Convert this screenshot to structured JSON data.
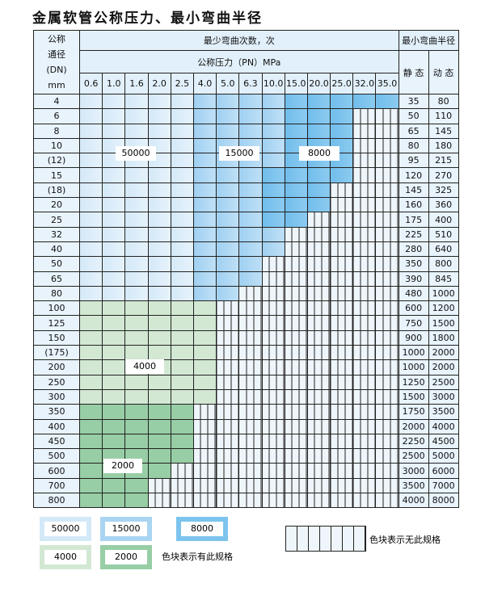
{
  "title": "金属软管公称压力、最小弯曲半径",
  "header": {
    "dn_label": [
      "公称",
      "通径",
      "(DN)",
      "mm"
    ],
    "cycles_label": "最少弯曲次数，次",
    "pressure_label": "公称压力（PN）MPa",
    "radius_label": "最小弯曲半径",
    "static_label": "静 态",
    "dynamic_label": "动 态",
    "pressures": [
      "0.6",
      "1.0",
      "1.6",
      "2.0",
      "2.5",
      "4.0",
      "5.0",
      "6.3",
      "10.0",
      "15.0",
      "20.0",
      "25.0",
      "32.0",
      "35.0"
    ]
  },
  "zones": {
    "a": {
      "value": "50000",
      "color": "#d4e9f8"
    },
    "b": {
      "value": "15000",
      "color": "#a9d5f2"
    },
    "c": {
      "value": "8000",
      "color": "#7cc4ee"
    },
    "d": {
      "value": "4000",
      "color": "#d2e8d3"
    },
    "e": {
      "value": "2000",
      "color": "#97cea5"
    },
    "x": {
      "value": "",
      "color": "#eef5fb"
    }
  },
  "rows": [
    {
      "dn": "4",
      "static": "35",
      "dynamic": "80",
      "pattern": "aaaaabbbbccccc"
    },
    {
      "dn": "6",
      "static": "50",
      "dynamic": "110",
      "pattern": "aaaaabbbbcccxx"
    },
    {
      "dn": "8",
      "static": "65",
      "dynamic": "145",
      "pattern": "aaaaabbbbcccxx"
    },
    {
      "dn": "10",
      "static": "80",
      "dynamic": "180",
      "pattern": "aaaaabbbbcccxx"
    },
    {
      "dn": "(12)",
      "static": "95",
      "dynamic": "215",
      "pattern": "aaaaabbbbcccxx"
    },
    {
      "dn": "15",
      "static": "120",
      "dynamic": "270",
      "pattern": "aaaaabbbccccxx"
    },
    {
      "dn": "(18)",
      "static": "145",
      "dynamic": "325",
      "pattern": "aaaaabbbcccxxx"
    },
    {
      "dn": "20",
      "static": "160",
      "dynamic": "360",
      "pattern": "aaaaabbbcccxxx"
    },
    {
      "dn": "25",
      "static": "175",
      "dynamic": "400",
      "pattern": "aaaaabbbccxxxx"
    },
    {
      "dn": "32",
      "static": "225",
      "dynamic": "510",
      "pattern": "aaaaabbbbxxxxx"
    },
    {
      "dn": "40",
      "static": "280",
      "dynamic": "640",
      "pattern": "aaaaabbbbxxxxx"
    },
    {
      "dn": "50",
      "static": "350",
      "dynamic": "800",
      "pattern": "aaaaabbbxxxxxx"
    },
    {
      "dn": "65",
      "static": "390",
      "dynamic": "845",
      "pattern": "aaaaabbbxxxxxx"
    },
    {
      "dn": "80",
      "static": "480",
      "dynamic": "1000",
      "pattern": "aaaaabbxxxxxxx"
    },
    {
      "dn": "100",
      "static": "600",
      "dynamic": "1200",
      "pattern": "ddddddxxxxxxxx"
    },
    {
      "dn": "125",
      "static": "750",
      "dynamic": "1500",
      "pattern": "ddddddxxxxxxxx"
    },
    {
      "dn": "150",
      "static": "900",
      "dynamic": "1800",
      "pattern": "ddddddxxxxxxxx"
    },
    {
      "dn": "(175)",
      "static": "1000",
      "dynamic": "2000",
      "pattern": "ddddddxxxxxxxx"
    },
    {
      "dn": "200",
      "static": "1000",
      "dynamic": "2000",
      "pattern": "ddddddxxxxxxxx"
    },
    {
      "dn": "250",
      "static": "1250",
      "dynamic": "2500",
      "pattern": "ddddddxxxxxxxx"
    },
    {
      "dn": "300",
      "static": "1500",
      "dynamic": "3000",
      "pattern": "ddddddxxxxxxxx"
    },
    {
      "dn": "350",
      "static": "1750",
      "dynamic": "3500",
      "pattern": "eeeeexxxxxxxxx"
    },
    {
      "dn": "400",
      "static": "2000",
      "dynamic": "4000",
      "pattern": "eeeeexxxxxxxxx"
    },
    {
      "dn": "450",
      "static": "2250",
      "dynamic": "4500",
      "pattern": "eeeeexxxxxxxxx"
    },
    {
      "dn": "500",
      "static": "2500",
      "dynamic": "5000",
      "pattern": "eeeeexxxxxxxxx"
    },
    {
      "dn": "600",
      "static": "3000",
      "dynamic": "6000",
      "pattern": "eeeexxxxxxxxxx"
    },
    {
      "dn": "700",
      "static": "3500",
      "dynamic": "7000",
      "pattern": "eeexxxxxxxxxxx"
    },
    {
      "dn": "800",
      "static": "4000",
      "dynamic": "8000",
      "pattern": "eeexxxxxxxxxxx"
    }
  ],
  "region_labels": {
    "a": "50000",
    "b": "15000",
    "c": "8000",
    "d": "4000",
    "e": "2000"
  },
  "legend": {
    "items": [
      "50000",
      "15000",
      "8000",
      "4000",
      "2000"
    ],
    "has_spec_note": "色块表示有此规格",
    "no_spec_note": "色块表示无此规格"
  }
}
